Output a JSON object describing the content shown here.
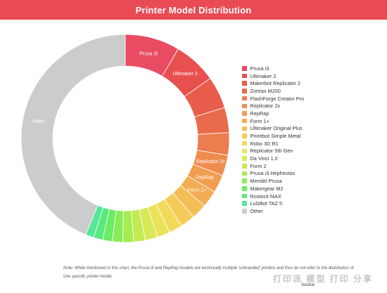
{
  "chart_data": {
    "type": "pie",
    "title": "Printer Model Distribution",
    "donut": true,
    "legend_position": "right",
    "slice_labels": {
      "Prusa i3": "Prusa i3",
      "Ultimaker 2": "Ultimaker 2",
      "Replicator 2x": "Replicator 2x",
      "RepRap": "RepRap",
      "Form 1+": "Form 1+",
      "Other": "Other"
    },
    "slices": [
      {
        "label": "Prusa i3",
        "value": 8.5,
        "color": "#e94b62"
      },
      {
        "label": "Ultimaker 2",
        "value": 6.7,
        "color": "#e85050"
      },
      {
        "label": "Makerbot Replicator 2",
        "value": 5.0,
        "color": "#e85c4b"
      },
      {
        "label": "Zortrax M200",
        "value": 3.9,
        "color": "#ea6b4c"
      },
      {
        "label": "FlashForge Creator Pro",
        "value": 3.5,
        "color": "#ec7d4e"
      },
      {
        "label": "Replicator 2x",
        "value": 3.2,
        "color": "#ef8d50"
      },
      {
        "label": "RepRap",
        "value": 2.8,
        "color": "#f19e52"
      },
      {
        "label": "Form 1+",
        "value": 2.6,
        "color": "#f3ad54"
      },
      {
        "label": "Ultimaker Original Plus",
        "value": 2.4,
        "color": "#f5bd56"
      },
      {
        "label": "Printrbot Simple Metal",
        "value": 2.3,
        "color": "#f5cb58"
      },
      {
        "label": "Robo 3D R1",
        "value": 2.1,
        "color": "#f3d95a"
      },
      {
        "label": "Replicator 5th Gen",
        "value": 2.0,
        "color": "#eae35a"
      },
      {
        "label": "Da Vinci 1.0",
        "value": 1.9,
        "color": "#d9e857"
      },
      {
        "label": "Form 2",
        "value": 1.8,
        "color": "#c3ea53"
      },
      {
        "label": "Prusa i3 Hephestos",
        "value": 1.7,
        "color": "#a6ec52"
      },
      {
        "label": "Mendel Prusa",
        "value": 1.6,
        "color": "#88ec58"
      },
      {
        "label": "Makergear M2",
        "value": 1.5,
        "color": "#6ceb66"
      },
      {
        "label": "Rostock MAX",
        "value": 1.4,
        "color": "#5ae97e"
      },
      {
        "label": "LulzBot TAZ 5",
        "value": 1.3,
        "color": "#55e79a"
      },
      {
        "label": "Other",
        "value": 43.8,
        "color": "#cccccc"
      }
    ]
  },
  "note": "Note: While mentioned in this chart, the Prusa i3 and RepRap models are technically multiple 'unbranded' printers and thus do not refer to the distribution of one specific printer model.",
  "source_label": "Source",
  "watermark": "打印派 模型 打印 分享 www.dayinpai.com",
  "colors": {
    "title_bar": "#e94b55"
  }
}
